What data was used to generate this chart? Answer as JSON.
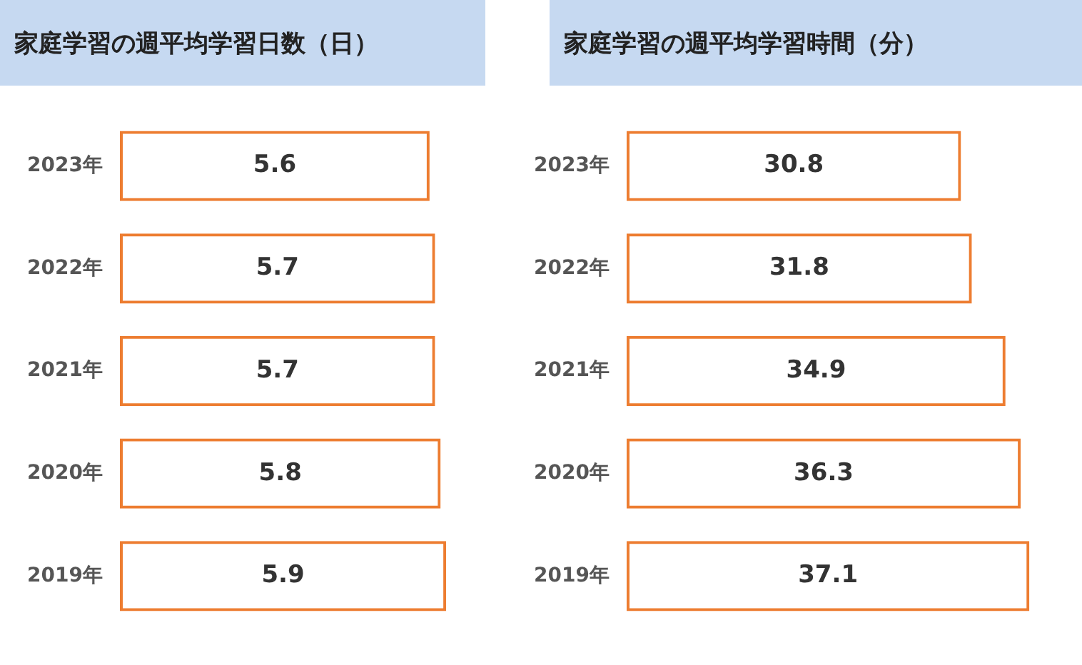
{
  "chart_data": [
    {
      "type": "bar",
      "orientation": "horizontal",
      "title": "家庭学習の週平均学習日数（日）",
      "categories": [
        "2023年",
        "2022年",
        "2021年",
        "2020年",
        "2019年"
      ],
      "values": [
        5.6,
        5.7,
        5.7,
        5.8,
        5.9
      ],
      "color": "#ed7d31",
      "data_labels": true,
      "grid": false,
      "legend": false,
      "tick_labels": "y"
    },
    {
      "type": "bar",
      "orientation": "horizontal",
      "title": "家庭学習の週平均学習時間（分）",
      "categories": [
        "2023年",
        "2022年",
        "2021年",
        "2020年",
        "2019年"
      ],
      "values": [
        30.8,
        31.8,
        34.9,
        36.3,
        37.1
      ],
      "color": "#ed7d31",
      "data_labels": true,
      "grid": false,
      "legend": false,
      "tick_labels": "y"
    }
  ]
}
